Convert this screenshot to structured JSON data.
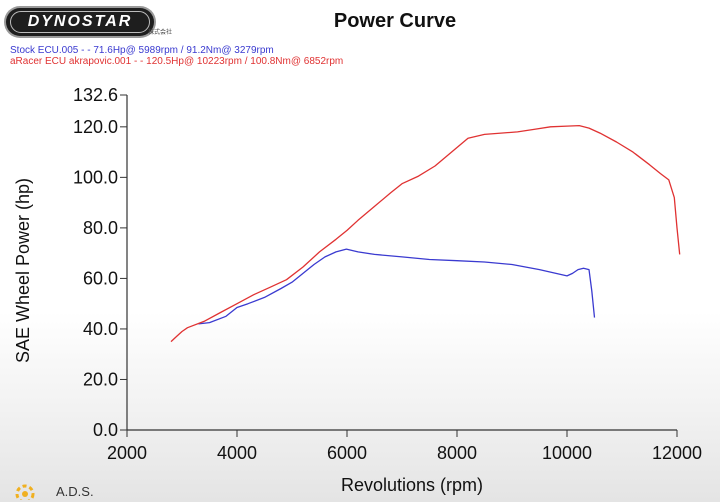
{
  "header": {
    "logo_text": "DYNOSTAR",
    "logo_sub": "株式会社",
    "title": "Power Curve"
  },
  "legend": {
    "stock": "Stock ECU.005 -  - 71.6Hp@ 5989rpm / 91.2Nm@ 3279rpm",
    "aracer": "aRacer ECU akrapovic.001 -  - 120.5Hp@ 10223rpm / 100.8Nm@ 6852rpm"
  },
  "footer": {
    "brand": "A.D.S."
  },
  "colors": {
    "stock": "#3a3ad0",
    "aracer": "#e03232",
    "axis": "#333333"
  },
  "chart_data": {
    "type": "line",
    "title": "Power Curve",
    "xlabel": "Revolutions (rpm)",
    "ylabel": "SAE Wheel Power (hp)",
    "xlim": [
      2000,
      12000
    ],
    "ylim": [
      0,
      132.6
    ],
    "xticks": [
      2000,
      4000,
      6000,
      8000,
      10000,
      12000
    ],
    "xtick_labels": [
      "2000",
      "4000",
      "6000",
      "8000",
      "10000",
      "12000"
    ],
    "yticks": [
      0,
      20,
      40,
      60,
      80,
      100,
      120,
      132.6
    ],
    "ytick_labels": [
      "0.0",
      "20.0",
      "40.0",
      "60.0",
      "80.0",
      "100.0",
      "120.0",
      "132.6"
    ],
    "grid": false,
    "series": [
      {
        "name": "Stock ECU.005",
        "color": "#3a3ad0",
        "x": [
          3300,
          3500,
          3800,
          4000,
          4200,
          4500,
          4800,
          5000,
          5200,
          5400,
          5600,
          5800,
          5989,
          6200,
          6500,
          7000,
          7500,
          8000,
          8500,
          9000,
          9500,
          10000,
          10100,
          10200,
          10300,
          10400,
          10450,
          10500
        ],
        "y": [
          42,
          42.5,
          45,
          48.5,
          50,
          52.5,
          56,
          58.5,
          62,
          65.5,
          68.5,
          70.5,
          71.6,
          70.5,
          69.5,
          68.5,
          67.5,
          67,
          66.5,
          65.5,
          63.5,
          61,
          62,
          63.5,
          64,
          63.5,
          55,
          44.5
        ]
      },
      {
        "name": "aRacer ECU akrapovic.001",
        "color": "#e03232",
        "x": [
          2800,
          2900,
          3000,
          3100,
          3400,
          3700,
          4000,
          4300,
          4600,
          4900,
          5200,
          5500,
          5800,
          6000,
          6200,
          6500,
          6800,
          7000,
          7300,
          7600,
          7900,
          8200,
          8500,
          8800,
          9100,
          9400,
          9700,
          10000,
          10223,
          10400,
          10600,
          10900,
          11200,
          11500,
          11700,
          11850,
          11950,
          12000,
          12050
        ],
        "y": [
          35,
          37,
          39,
          40.5,
          43,
          46.5,
          50,
          53.5,
          56.5,
          59.5,
          64.5,
          70.5,
          75.5,
          79,
          83,
          88.5,
          94,
          97.5,
          100.5,
          104.5,
          110,
          115.5,
          117,
          117.5,
          118,
          119,
          120,
          120.3,
          120.5,
          119.5,
          117.5,
          114,
          110,
          105,
          101.5,
          99,
          92,
          80,
          69.5
        ]
      }
    ]
  }
}
